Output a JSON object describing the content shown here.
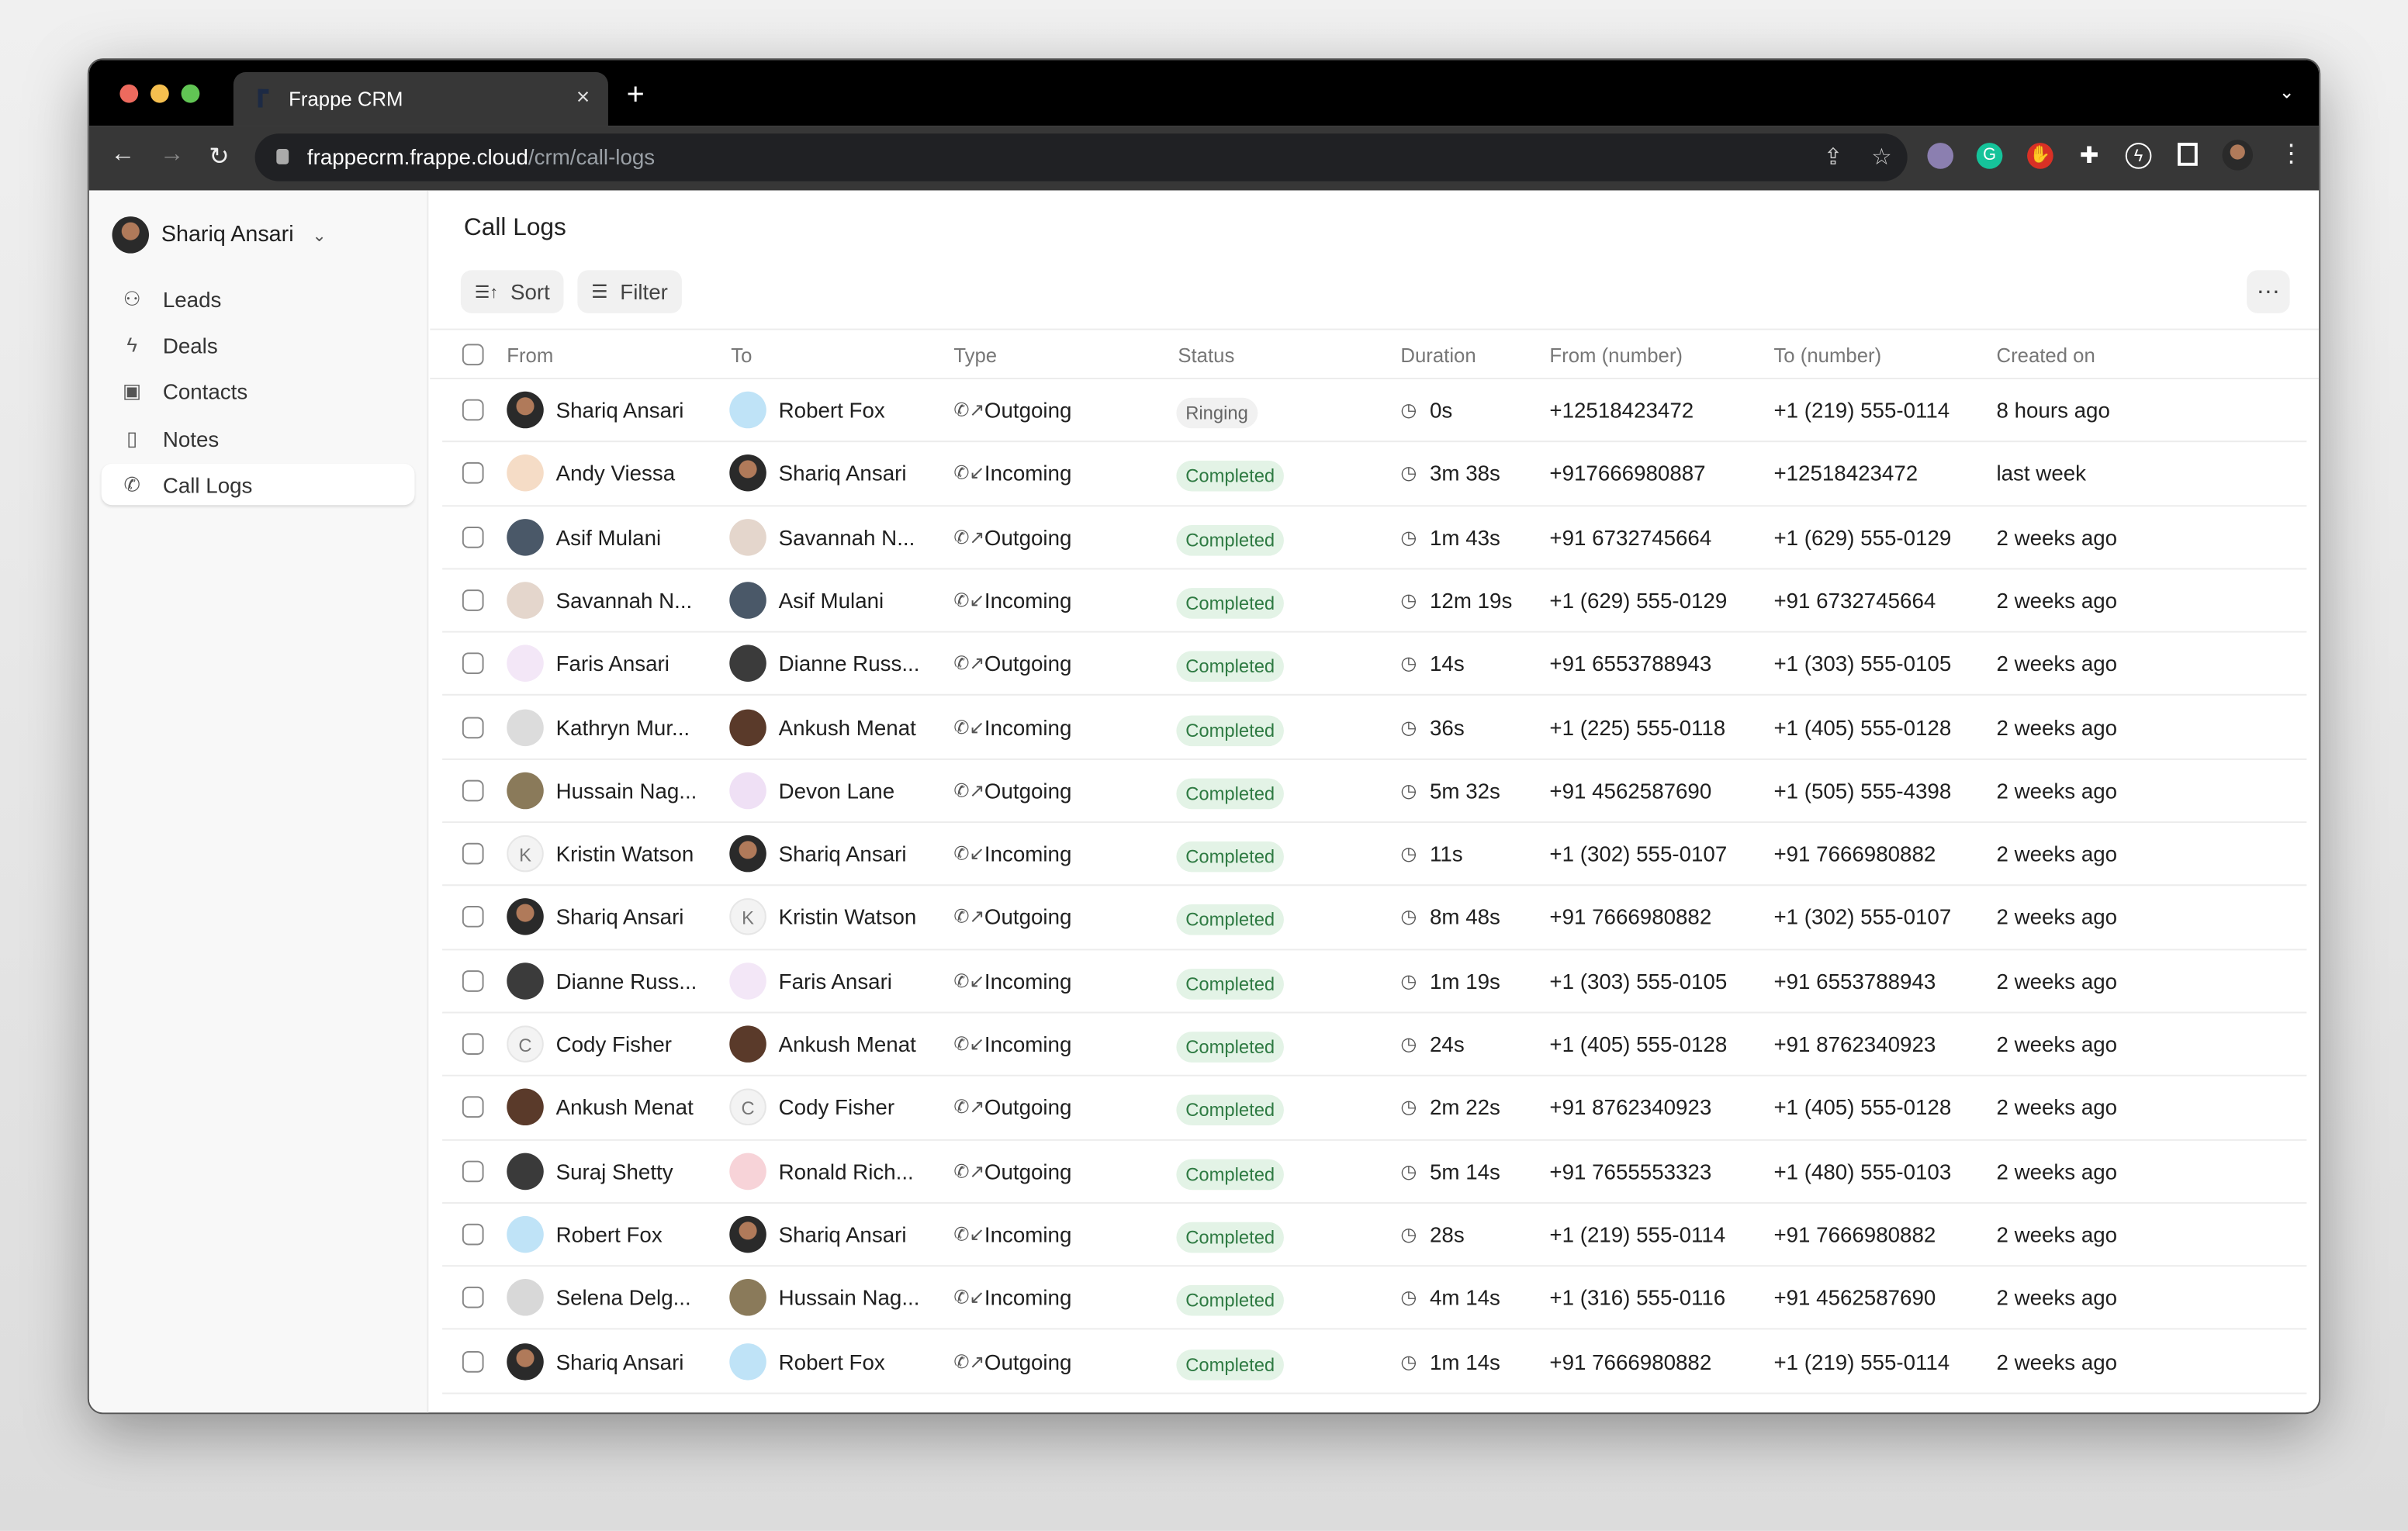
{
  "browser": {
    "tab_title": "Frappe CRM",
    "url_host": "frappecrm.frappe.cloud",
    "url_path": "/crm/call-logs"
  },
  "sidebar": {
    "user": "Shariq Ansari",
    "items": [
      {
        "label": "Leads",
        "icon": "users-icon"
      },
      {
        "label": "Deals",
        "icon": "lightning-icon"
      },
      {
        "label": "Contacts",
        "icon": "contact-card-icon"
      },
      {
        "label": "Notes",
        "icon": "file-icon"
      },
      {
        "label": "Call Logs",
        "icon": "phone-icon",
        "active": true
      }
    ]
  },
  "page": {
    "title": "Call Logs",
    "sort_label": "Sort",
    "filter_label": "Filter"
  },
  "table": {
    "columns": [
      "From",
      "To",
      "Type",
      "Status",
      "Duration",
      "From (number)",
      "To (number)",
      "Created on"
    ],
    "rows": [
      {
        "from": "Shariq Ansari",
        "from_av": "photo",
        "to": "Robert Fox",
        "to_av": "#bfe3f7",
        "type": "Outgoing",
        "status": "Ringing",
        "duration": "0s",
        "from_number": "+12518423472",
        "to_number": "+1 (219) 555-0114",
        "created": "8 hours ago"
      },
      {
        "from": "Andy Viessa",
        "from_av": "#f5dcc6",
        "to": "Shariq Ansari",
        "to_av": "photo",
        "type": "Incoming",
        "status": "Completed",
        "duration": "3m 38s",
        "from_number": "+917666980887",
        "to_number": "+12518423472",
        "created": "last week"
      },
      {
        "from": "Asif Mulani",
        "from_av": "#4a5868",
        "to": "Savannah N...",
        "to_av": "#e4d6cc",
        "type": "Outgoing",
        "status": "Completed",
        "duration": "1m 43s",
        "from_number": "+91 6732745664",
        "to_number": "+1 (629) 555-0129",
        "created": "2 weeks ago"
      },
      {
        "from": "Savannah N...",
        "from_av": "#e4d6cc",
        "to": "Asif Mulani",
        "to_av": "#4a5868",
        "type": "Incoming",
        "status": "Completed",
        "duration": "12m 19s",
        "from_number": "+1 (629) 555-0129",
        "to_number": "+91 6732745664",
        "created": "2 weeks ago"
      },
      {
        "from": "Faris Ansari",
        "from_av": "#f3e7f7",
        "to": "Dianne Russ...",
        "to_av": "#3b3b3b",
        "type": "Outgoing",
        "status": "Completed",
        "duration": "14s",
        "from_number": "+91 6553788943",
        "to_number": "+1 (303) 555-0105",
        "created": "2 weeks ago"
      },
      {
        "from": "Kathryn Mur...",
        "from_av": "#dcdcdc",
        "to": "Ankush Menat",
        "to_av": "#5a3a2a",
        "type": "Incoming",
        "status": "Completed",
        "duration": "36s",
        "from_number": "+1 (225) 555-0118",
        "to_number": "+1 (405) 555-0128",
        "created": "2 weeks ago"
      },
      {
        "from": "Hussain Nag...",
        "from_av": "#8a7a5a",
        "to": "Devon Lane",
        "to_av": "#efe0f5",
        "type": "Outgoing",
        "status": "Completed",
        "duration": "5m 32s",
        "from_number": "+91 4562587690",
        "to_number": "+1 (505) 555-4398",
        "created": "2 weeks ago"
      },
      {
        "from": "Kristin Watson",
        "from_av": "K",
        "to": "Shariq Ansari",
        "to_av": "photo",
        "type": "Incoming",
        "status": "Completed",
        "duration": "11s",
        "from_number": "+1 (302) 555-0107",
        "to_number": "+91 7666980882",
        "created": "2 weeks ago"
      },
      {
        "from": "Shariq Ansari",
        "from_av": "photo",
        "to": "Kristin Watson",
        "to_av": "K",
        "type": "Outgoing",
        "status": "Completed",
        "duration": "8m 48s",
        "from_number": "+91 7666980882",
        "to_number": "+1 (302) 555-0107",
        "created": "2 weeks ago"
      },
      {
        "from": "Dianne Russ...",
        "from_av": "#3b3b3b",
        "to": "Faris Ansari",
        "to_av": "#f3e7f7",
        "type": "Incoming",
        "status": "Completed",
        "duration": "1m 19s",
        "from_number": "+1 (303) 555-0105",
        "to_number": "+91 6553788943",
        "created": "2 weeks ago"
      },
      {
        "from": "Cody Fisher",
        "from_av": "C",
        "to": "Ankush Menat",
        "to_av": "#5a3a2a",
        "type": "Incoming",
        "status": "Completed",
        "duration": "24s",
        "from_number": "+1 (405) 555-0128",
        "to_number": "+91 8762340923",
        "created": "2 weeks ago"
      },
      {
        "from": "Ankush Menat",
        "from_av": "#5a3a2a",
        "to": "Cody Fisher",
        "to_av": "C",
        "type": "Outgoing",
        "status": "Completed",
        "duration": "2m 22s",
        "from_number": "+91 8762340923",
        "to_number": "+1 (405) 555-0128",
        "created": "2 weeks ago"
      },
      {
        "from": "Suraj Shetty",
        "from_av": "#3a3a3a",
        "to": "Ronald Rich...",
        "to_av": "#f7d3d8",
        "type": "Outgoing",
        "status": "Completed",
        "duration": "5m 14s",
        "from_number": "+91 7655553323",
        "to_number": "+1 (480) 555-0103",
        "created": "2 weeks ago"
      },
      {
        "from": "Robert Fox",
        "from_av": "#bfe3f7",
        "to": "Shariq Ansari",
        "to_av": "photo",
        "type": "Incoming",
        "status": "Completed",
        "duration": "28s",
        "from_number": "+1 (219) 555-0114",
        "to_number": "+91 7666980882",
        "created": "2 weeks ago"
      },
      {
        "from": "Selena Delg...",
        "from_av": "#d8d8d8",
        "to": "Hussain Nag...",
        "to_av": "#8a7a5a",
        "type": "Incoming",
        "status": "Completed",
        "duration": "4m 14s",
        "from_number": "+1 (316) 555-0116",
        "to_number": "+91 4562587690",
        "created": "2 weeks ago"
      },
      {
        "from": "Shariq Ansari",
        "from_av": "photo",
        "to": "Robert Fox",
        "to_av": "#bfe3f7",
        "type": "Outgoing",
        "status": "Completed",
        "duration": "1m 14s",
        "from_number": "+91 7666980882",
        "to_number": "+1 (219) 555-0114",
        "created": "2 weeks ago"
      }
    ]
  }
}
